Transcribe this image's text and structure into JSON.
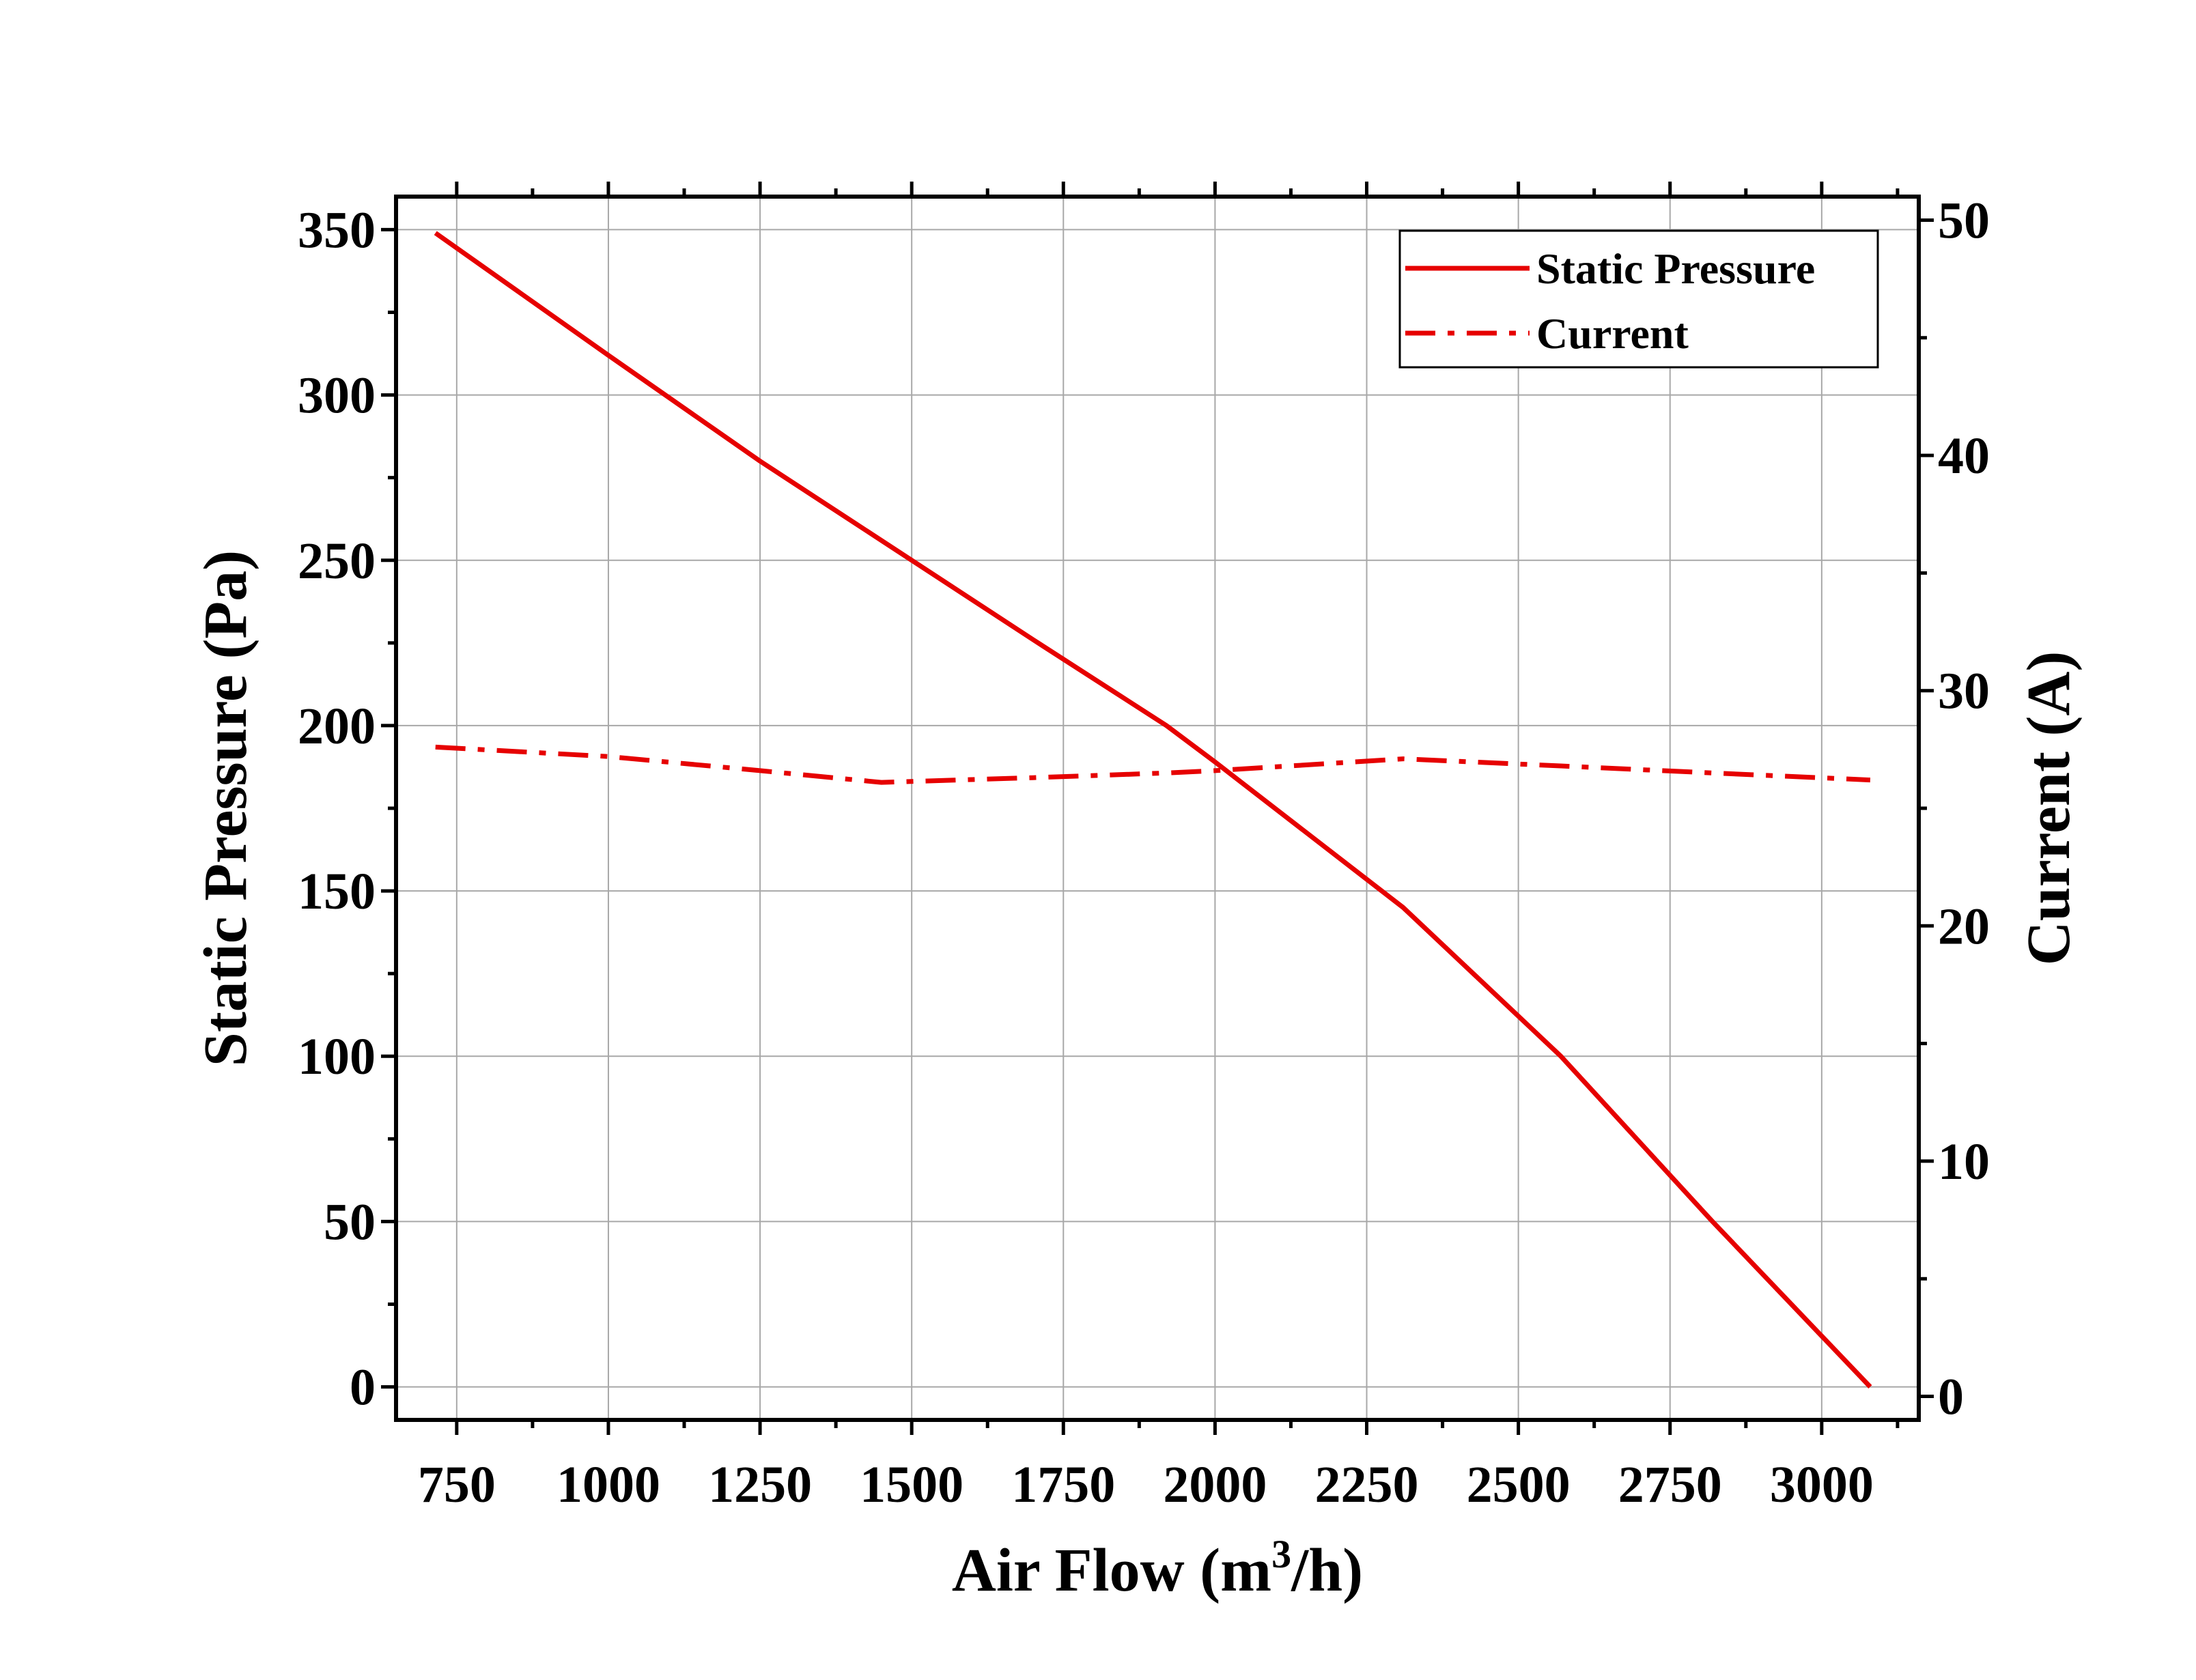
{
  "chart_data": {
    "type": "line",
    "title": "",
    "xlabel": "Air Flow (m",
    "xlabel_sup": "3",
    "xlabel_tail": "/h)",
    "ylabel": "Static Pressure (Pa)",
    "y2label": "Current (A)",
    "xlim": [
      650,
      3160
    ],
    "ylim": [
      -10,
      360
    ],
    "y2lim": [
      -1,
      51
    ],
    "x_ticks": [
      "750",
      "1000",
      "1250",
      "1500",
      "1750",
      "2000",
      "2250",
      "2500",
      "2750",
      "3000"
    ],
    "y_ticks": [
      "0",
      "50",
      "100",
      "150",
      "200",
      "250",
      "300",
      "350"
    ],
    "y2_ticks": [
      "0",
      "10",
      "20",
      "30",
      "40",
      "50"
    ],
    "grid": true,
    "legend_position": "top-right",
    "series": [
      {
        "name": "Static Pressure",
        "axis": "left",
        "style": "solid",
        "color": "#e60000",
        "x": [
          715,
          1000,
          1250,
          1450,
          1700,
          1920,
          2000,
          2310,
          2570,
          2820,
          3080
        ],
        "y": [
          349,
          312,
          280,
          256,
          226,
          200,
          189,
          145,
          100,
          50,
          0
        ]
      },
      {
        "name": "Current",
        "axis": "right",
        "style": "dash-dot",
        "color": "#e60000",
        "x": [
          715,
          1000,
          1250,
          1450,
          1700,
          1920,
          2000,
          2310,
          2570,
          2820,
          3080
        ],
        "y": [
          27.6,
          27.2,
          26.6,
          26.1,
          26.3,
          26.5,
          26.6,
          27.1,
          26.8,
          26.5,
          26.2
        ]
      }
    ]
  }
}
